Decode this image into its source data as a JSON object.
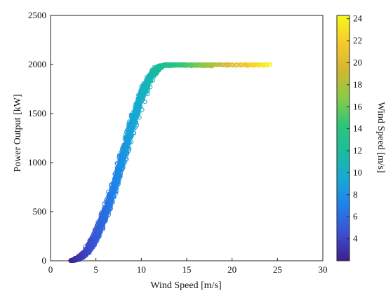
{
  "chart_data": {
    "type": "scatter",
    "title": "",
    "xlabel": "Wind Speed [m/s]",
    "ylabel": "Power Output [kW]",
    "xlim": [
      0,
      30
    ],
    "ylim": [
      0,
      2500
    ],
    "xticks": [
      0,
      5,
      10,
      15,
      20,
      25,
      30
    ],
    "yticks": [
      0,
      500,
      1000,
      1500,
      2000,
      2500
    ],
    "grid": false,
    "marker": "open-circle",
    "colorbar": {
      "label": "Wind Speed [m/s]",
      "range": [
        2,
        24.3
      ],
      "ticks": [
        4,
        6,
        8,
        10,
        12,
        14,
        16,
        18,
        20,
        22,
        24
      ],
      "colormap": [
        "#3e1f8c",
        "#3c4fcf",
        "#2080ea",
        "#16a9d6",
        "#1abd9d",
        "#2ec677",
        "#8cca48",
        "#d3b72f",
        "#f6ca2a",
        "#f6f81a"
      ]
    },
    "power_curve": {
      "wind_speed": [
        2.2,
        3,
        4,
        5,
        6,
        7,
        8,
        9,
        10,
        11,
        12,
        13,
        15,
        20,
        24
      ],
      "power": [
        0,
        15,
        90,
        250,
        470,
        750,
        1070,
        1400,
        1680,
        1880,
        1980,
        2000,
        2000,
        2000,
        2000
      ]
    },
    "series": [
      {
        "x": [
          2.3,
          2.6,
          2.9,
          3.2,
          3.5,
          3.8,
          4.1,
          4.4,
          4.7,
          5.0,
          5.3,
          5.6,
          5.9,
          6.2,
          6.5,
          6.8,
          7.1,
          7.4,
          7.7,
          8.0,
          8.3,
          8.6,
          8.9,
          9.2,
          9.5,
          9.8,
          10.1,
          10.4,
          10.7,
          11.0,
          11.3,
          11.6,
          11.9,
          12.2,
          12.5,
          12.8,
          13.5,
          14.5,
          15.5,
          16.5,
          17.5,
          18.5,
          19.5,
          20.5,
          21.5,
          22.5,
          23.5,
          24.2
        ],
        "y": [
          0,
          5,
          15,
          30,
          50,
          75,
          105,
          140,
          185,
          240,
          290,
          350,
          410,
          480,
          550,
          620,
          700,
          780,
          860,
          950,
          1030,
          1120,
          1210,
          1300,
          1380,
          1460,
          1540,
          1620,
          1700,
          1770,
          1840,
          1900,
          1950,
          1980,
          1995,
          2000,
          2000,
          2000,
          2000,
          2000,
          1995,
          2000,
          2000,
          2000,
          2000,
          2000,
          2000,
          2000
        ]
      }
    ]
  }
}
